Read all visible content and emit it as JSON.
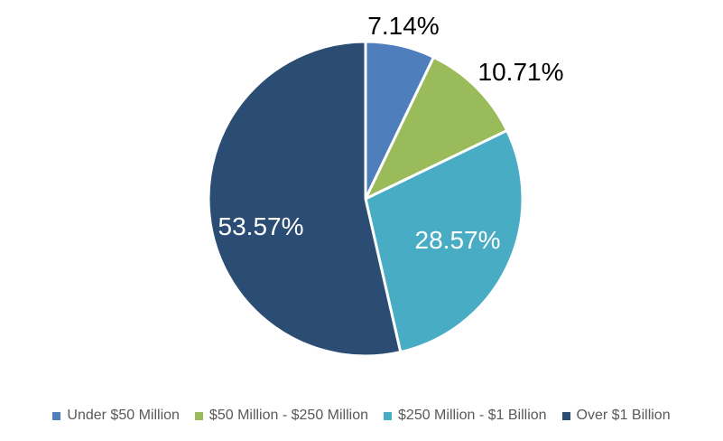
{
  "chart_data": {
    "type": "pie",
    "title": "",
    "categories": [
      "Under $50 Million",
      "$50 Million - $250 Million",
      "$250 Million - $1 Billion",
      "Over $1 Billion"
    ],
    "values": [
      7.14,
      10.71,
      28.57,
      53.57
    ],
    "data_labels": [
      "7.14%",
      "10.71%",
      "28.57%",
      "53.57%"
    ],
    "slice_colors": [
      "#4E7FBC",
      "#9ABB59",
      "#48ACC4",
      "#2B4D73"
    ],
    "data_label_colors": [
      "#000000",
      "#000000",
      "#FFFFFF",
      "#FFFFFF"
    ],
    "start_angle_deg": 0,
    "direction": "clockwise",
    "legend_position": "bottom",
    "legend_text_color": "#595959",
    "background_color": "#FFFFFF",
    "slice_border_color": "#FFFFFF"
  }
}
